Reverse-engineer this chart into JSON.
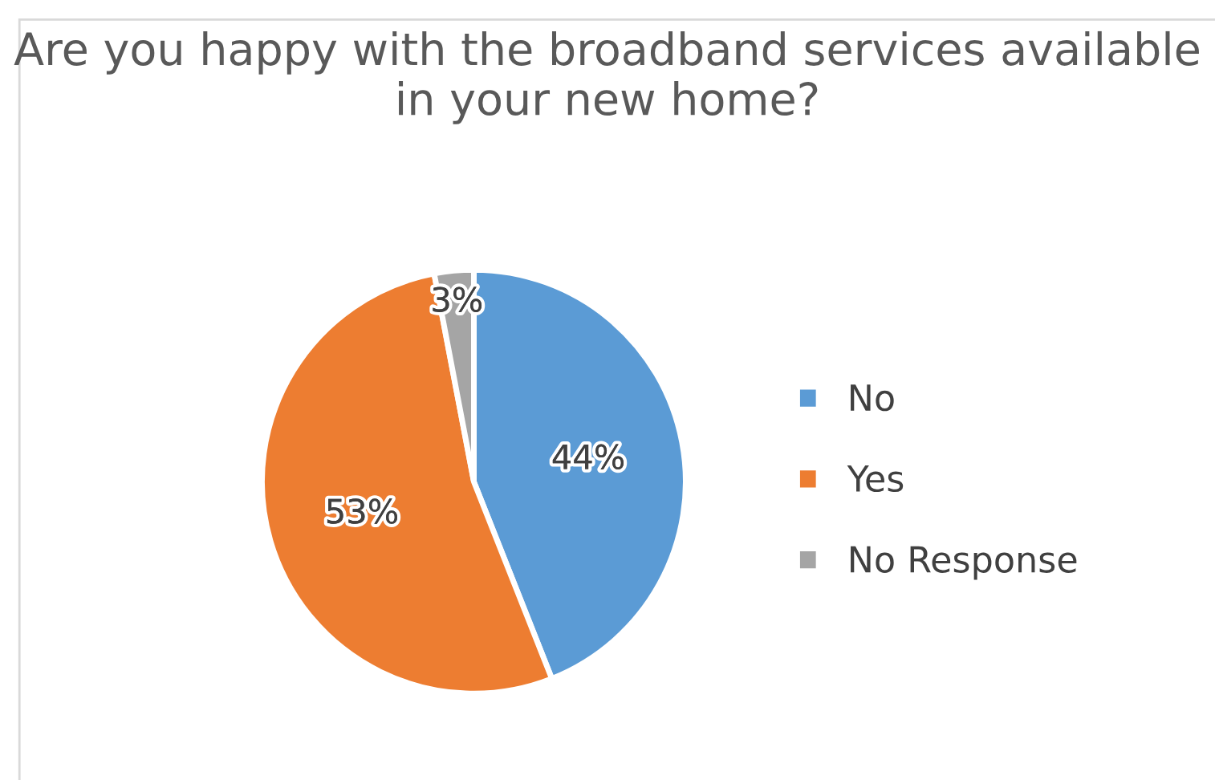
{
  "chart_data": {
    "type": "pie",
    "title": "Are you happy with the broadband services available in your new home?",
    "categories": [
      "No",
      "Yes",
      "No Response"
    ],
    "values": [
      44,
      53,
      3
    ],
    "value_labels": [
      "44%",
      "53%",
      "3%"
    ],
    "colors": [
      "#5b9bd5",
      "#ed7d31",
      "#a5a5a5"
    ],
    "legend": "right"
  }
}
